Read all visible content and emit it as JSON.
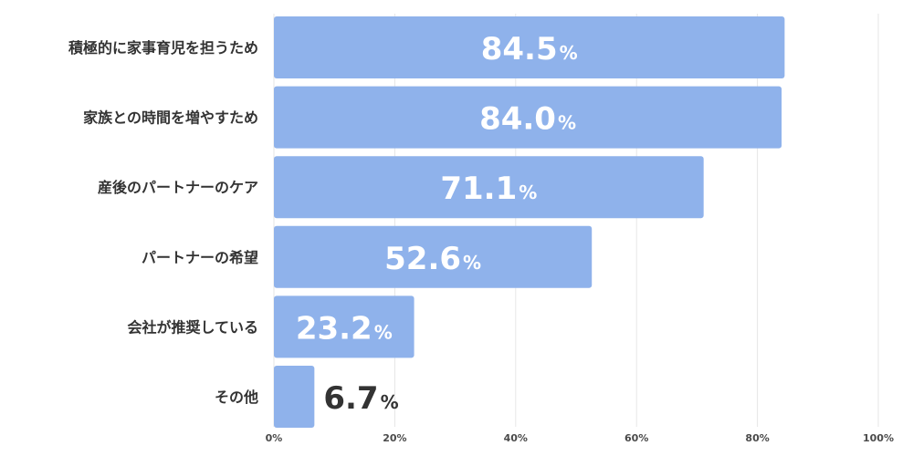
{
  "chart_data": {
    "type": "bar",
    "orientation": "horizontal",
    "categories": [
      "積極的に家事育児を担うため",
      "家族との時間を増やすため",
      "産後のパートナーのケア",
      "パートナーの希望",
      "会社が推奨している",
      "その他"
    ],
    "values": [
      84.5,
      84.0,
      71.1,
      52.6,
      23.2,
      6.7
    ],
    "value_labels": [
      "84.5",
      "84.0",
      "71.1",
      "52.6",
      "23.2",
      "6.7"
    ],
    "value_unit": "%",
    "xlim": [
      0,
      100
    ],
    "xticks": [
      "0%",
      "20%",
      "40%",
      "60%",
      "80%",
      "100%"
    ],
    "xtick_values": [
      0,
      20,
      40,
      60,
      80,
      100
    ],
    "grid": true,
    "legend": "none",
    "title": "",
    "xlabel": "",
    "ylabel": "",
    "colors": {
      "bar": "#8fb2eb",
      "grid": "#e6e6e6",
      "label_inside": "#ffffff",
      "label_outside": "#333333",
      "text": "#333333"
    }
  }
}
